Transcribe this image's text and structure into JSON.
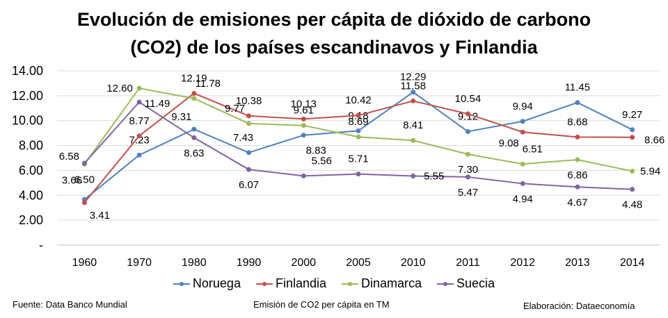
{
  "chart_data": {
    "type": "line",
    "title": [
      "Evolución de emisiones per cápita de dióxido de carbono",
      "(CO2) de los países escandinavos y Finlandia"
    ],
    "categories": [
      "1960",
      "1970",
      "1980",
      "1990",
      "2000",
      "2005",
      "2010",
      "2011",
      "2012",
      "2013",
      "2014"
    ],
    "y_ticks": [
      "14.00",
      "12.00",
      "10.00",
      "8.00",
      "6.00",
      "4.00",
      "2.00",
      "-"
    ],
    "ylim": [
      0,
      14
    ],
    "grid": true,
    "legend_position": "bottom",
    "series": [
      {
        "name": "Noruega",
        "color": "#4f81bd",
        "values": [
          3.66,
          7.23,
          9.31,
          7.43,
          8.83,
          9.18,
          12.29,
          9.12,
          9.94,
          11.45,
          9.27
        ],
        "labels": [
          "3.66",
          "7.23",
          "9.31",
          "7.43",
          "8.83",
          "9.18",
          "12.29",
          "9.12",
          "9.94",
          "11.45",
          "9.27"
        ]
      },
      {
        "name": "Finlandia",
        "color": "#c0504d",
        "values": [
          3.41,
          8.77,
          12.19,
          10.38,
          10.13,
          10.42,
          11.58,
          10.54,
          9.08,
          8.68,
          8.66
        ],
        "labels": [
          "3.41",
          "8.77",
          "12.19",
          "10.38",
          "10.13",
          "10.42",
          "11.58",
          "10.54",
          "9.08",
          "8.68",
          "8.66"
        ]
      },
      {
        "name": "Dinamarca",
        "color": "#9bbb59",
        "values": [
          6.5,
          12.6,
          11.78,
          9.77,
          9.61,
          8.69,
          8.41,
          7.3,
          6.51,
          6.86,
          5.94
        ],
        "labels": [
          "6.50",
          "12.60",
          "11.78",
          "9.77",
          "9.61",
          "8.69",
          "8.41",
          "7.30",
          "6.51",
          "6.86",
          "5.94"
        ]
      },
      {
        "name": "Suecia",
        "color": "#8064a2",
        "values": [
          6.58,
          11.49,
          8.63,
          6.07,
          5.56,
          5.71,
          5.55,
          5.47,
          4.94,
          4.67,
          4.48
        ],
        "labels": [
          "6.58",
          "11.49",
          "8.63",
          "6.07",
          "5.56",
          "5.71",
          "5.55",
          "5.47",
          "4.94",
          "4.67",
          "4.48"
        ]
      }
    ],
    "annotations": {
      "source": "Fuente: Data Banco Mundial",
      "unit_note": "Emisión de CO2 per cápita en TM",
      "credit": "Elaboración: Dataeconomía"
    }
  }
}
